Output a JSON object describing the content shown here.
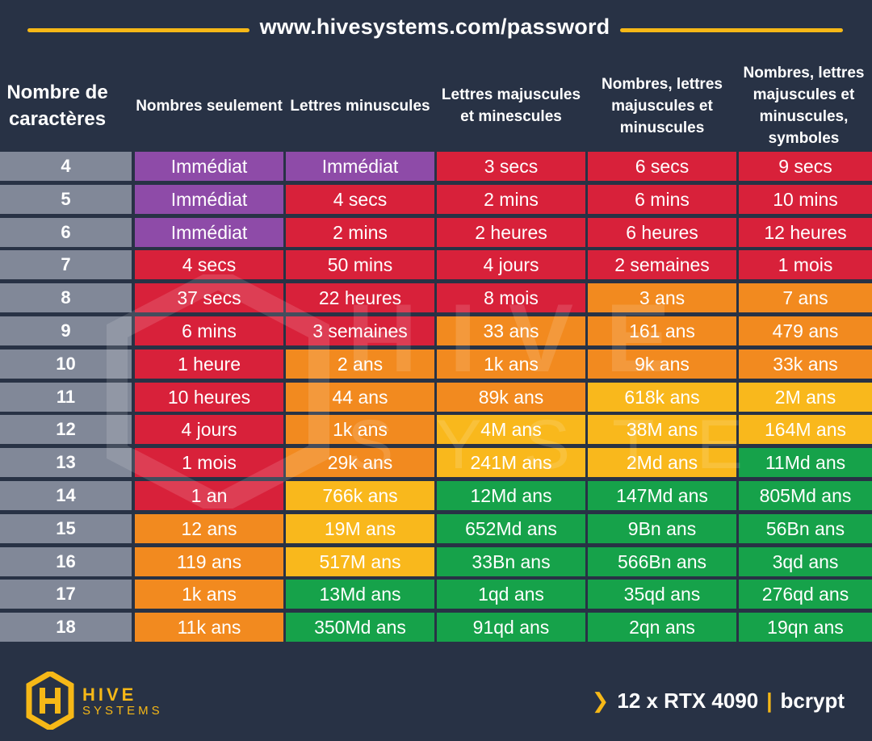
{
  "header": {
    "url": "www.hivesystems.com/password"
  },
  "footer": {
    "logo_hive": "HIVE",
    "logo_systems": "SYSTEMS",
    "hardware": "12 x RTX 4090",
    "separator": "|",
    "algorithm": "bcrypt"
  },
  "watermark": {
    "line1": "HIVE",
    "line2": "SYSTEMS"
  },
  "colors": {
    "background": "#283245",
    "accent": "#f6b817",
    "row_header": "#818898",
    "instant": "#8e4ba8",
    "red": "#d8213a",
    "orange": "#f28a1f",
    "yellow": "#f9b81c",
    "green": "#16a24a"
  },
  "chart_data": {
    "type": "table",
    "columns": [
      "Nombre de caractères",
      "Nombres seulement",
      "Lettres minuscules",
      "Lettres majuscules et minescules",
      "Nombres, lettres majuscules et minuscules",
      "Nombres, lettres majuscules et minuscules, symboles"
    ],
    "rows": [
      {
        "chars": "4",
        "values": [
          "Immédiat",
          "Immédiat",
          "3 secs",
          "6 secs",
          "9 secs"
        ],
        "levels": [
          "instant",
          "instant",
          "red",
          "red",
          "red"
        ]
      },
      {
        "chars": "5",
        "values": [
          "Immédiat",
          "4 secs",
          "2 mins",
          "6 mins",
          "10 mins"
        ],
        "levels": [
          "instant",
          "red",
          "red",
          "red",
          "red"
        ]
      },
      {
        "chars": "6",
        "values": [
          "Immédiat",
          "2 mins",
          "2 heures",
          "6 heures",
          "12 heures"
        ],
        "levels": [
          "instant",
          "red",
          "red",
          "red",
          "red"
        ]
      },
      {
        "chars": "7",
        "values": [
          "4 secs",
          "50 mins",
          "4 jours",
          "2 semaines",
          "1 mois"
        ],
        "levels": [
          "red",
          "red",
          "red",
          "red",
          "red"
        ]
      },
      {
        "chars": "8",
        "values": [
          "37 secs",
          "22 heures",
          "8 mois",
          "3 ans",
          "7 ans"
        ],
        "levels": [
          "red",
          "red",
          "red",
          "orange",
          "orange"
        ]
      },
      {
        "chars": "9",
        "values": [
          "6 mins",
          "3 semaines",
          "33 ans",
          "161 ans",
          "479 ans"
        ],
        "levels": [
          "red",
          "red",
          "orange",
          "orange",
          "orange"
        ]
      },
      {
        "chars": "10",
        "values": [
          "1 heure",
          "2 ans",
          "1k ans",
          "9k ans",
          "33k ans"
        ],
        "levels": [
          "red",
          "orange",
          "orange",
          "orange",
          "orange"
        ]
      },
      {
        "chars": "11",
        "values": [
          "10 heures",
          "44 ans",
          "89k ans",
          "618k ans",
          "2M ans"
        ],
        "levels": [
          "red",
          "orange",
          "orange",
          "yellow",
          "yellow"
        ]
      },
      {
        "chars": "12",
        "values": [
          "4 jours",
          "1k ans",
          "4M ans",
          "38M ans",
          "164M ans"
        ],
        "levels": [
          "red",
          "orange",
          "yellow",
          "yellow",
          "yellow"
        ]
      },
      {
        "chars": "13",
        "values": [
          "1 mois",
          "29k ans",
          "241M ans",
          "2Md ans",
          "11Md ans"
        ],
        "levels": [
          "red",
          "orange",
          "yellow",
          "yellow",
          "green"
        ]
      },
      {
        "chars": "14",
        "values": [
          "1 an",
          "766k ans",
          "12Md ans",
          "147Md ans",
          "805Md ans"
        ],
        "levels": [
          "red",
          "yellow",
          "green",
          "green",
          "green"
        ]
      },
      {
        "chars": "15",
        "values": [
          "12 ans",
          "19M ans",
          "652Md ans",
          "9Bn ans",
          "56Bn ans"
        ],
        "levels": [
          "orange",
          "yellow",
          "green",
          "green",
          "green"
        ]
      },
      {
        "chars": "16",
        "values": [
          "119 ans",
          "517M ans",
          "33Bn ans",
          "566Bn ans",
          "3qd ans"
        ],
        "levels": [
          "orange",
          "yellow",
          "green",
          "green",
          "green"
        ]
      },
      {
        "chars": "17",
        "values": [
          "1k ans",
          "13Md ans",
          "1qd ans",
          "35qd ans",
          "276qd ans"
        ],
        "levels": [
          "orange",
          "green",
          "green",
          "green",
          "green"
        ]
      },
      {
        "chars": "18",
        "values": [
          "11k ans",
          "350Md ans",
          "91qd ans",
          "2qn ans",
          "19qn ans"
        ],
        "levels": [
          "orange",
          "green",
          "green",
          "green",
          "green"
        ]
      }
    ]
  }
}
